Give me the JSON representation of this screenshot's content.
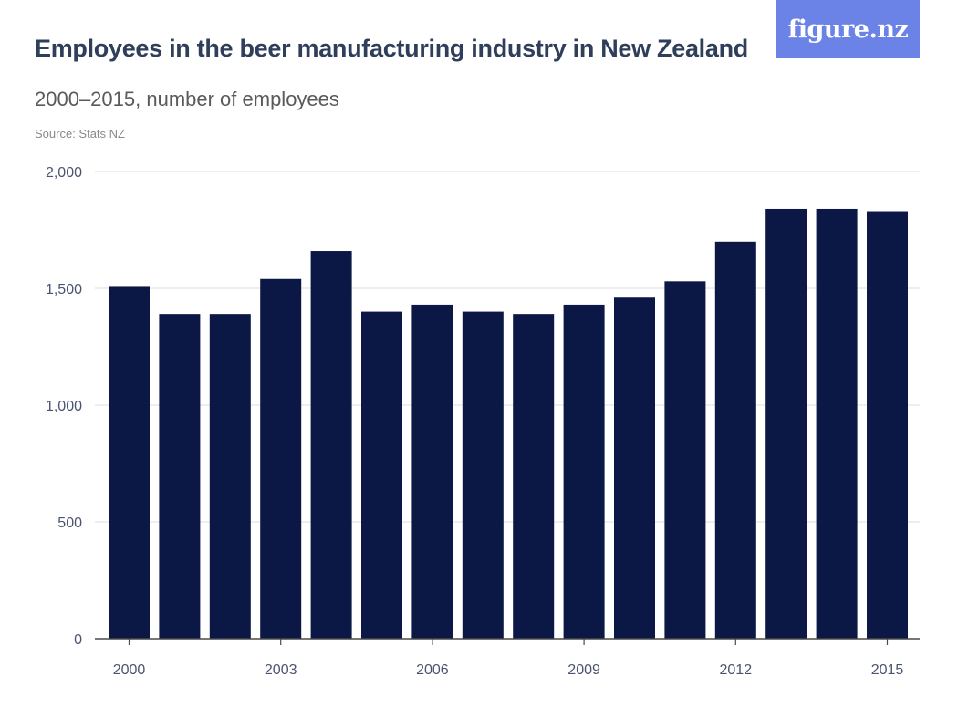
{
  "header": {
    "title": "Employees in the beer manufacturing industry in New Zealand",
    "subtitle": "2000–2015, number of employees",
    "source": "Source: Stats NZ",
    "logo_text": "figure.nz"
  },
  "colors": {
    "bar": "#0b1744",
    "grid": "#dddddd",
    "axis": "#4a4a4a",
    "logo_bg": "#6b83e6",
    "title": "#2f3f5b"
  },
  "chart_data": {
    "type": "bar",
    "title": "Employees in the beer manufacturing industry in New Zealand",
    "subtitle": "2000–2015, number of employees",
    "xlabel": "",
    "ylabel": "",
    "categories": [
      "2000",
      "2001",
      "2002",
      "2003",
      "2004",
      "2005",
      "2006",
      "2007",
      "2008",
      "2009",
      "2010",
      "2011",
      "2012",
      "2013",
      "2014",
      "2015"
    ],
    "values": [
      1510,
      1390,
      1390,
      1540,
      1660,
      1400,
      1430,
      1400,
      1390,
      1430,
      1460,
      1530,
      1700,
      1840,
      1840,
      1830
    ],
    "ylim": [
      0,
      2000
    ],
    "yticks": [
      0,
      500,
      1000,
      1500,
      2000
    ],
    "ytick_labels": [
      "0",
      "500",
      "1,000",
      "1,500",
      "2,000"
    ],
    "xtick_labels": [
      "2000",
      "2003",
      "2006",
      "2009",
      "2012",
      "2015"
    ],
    "grid": true,
    "legend": "none"
  }
}
